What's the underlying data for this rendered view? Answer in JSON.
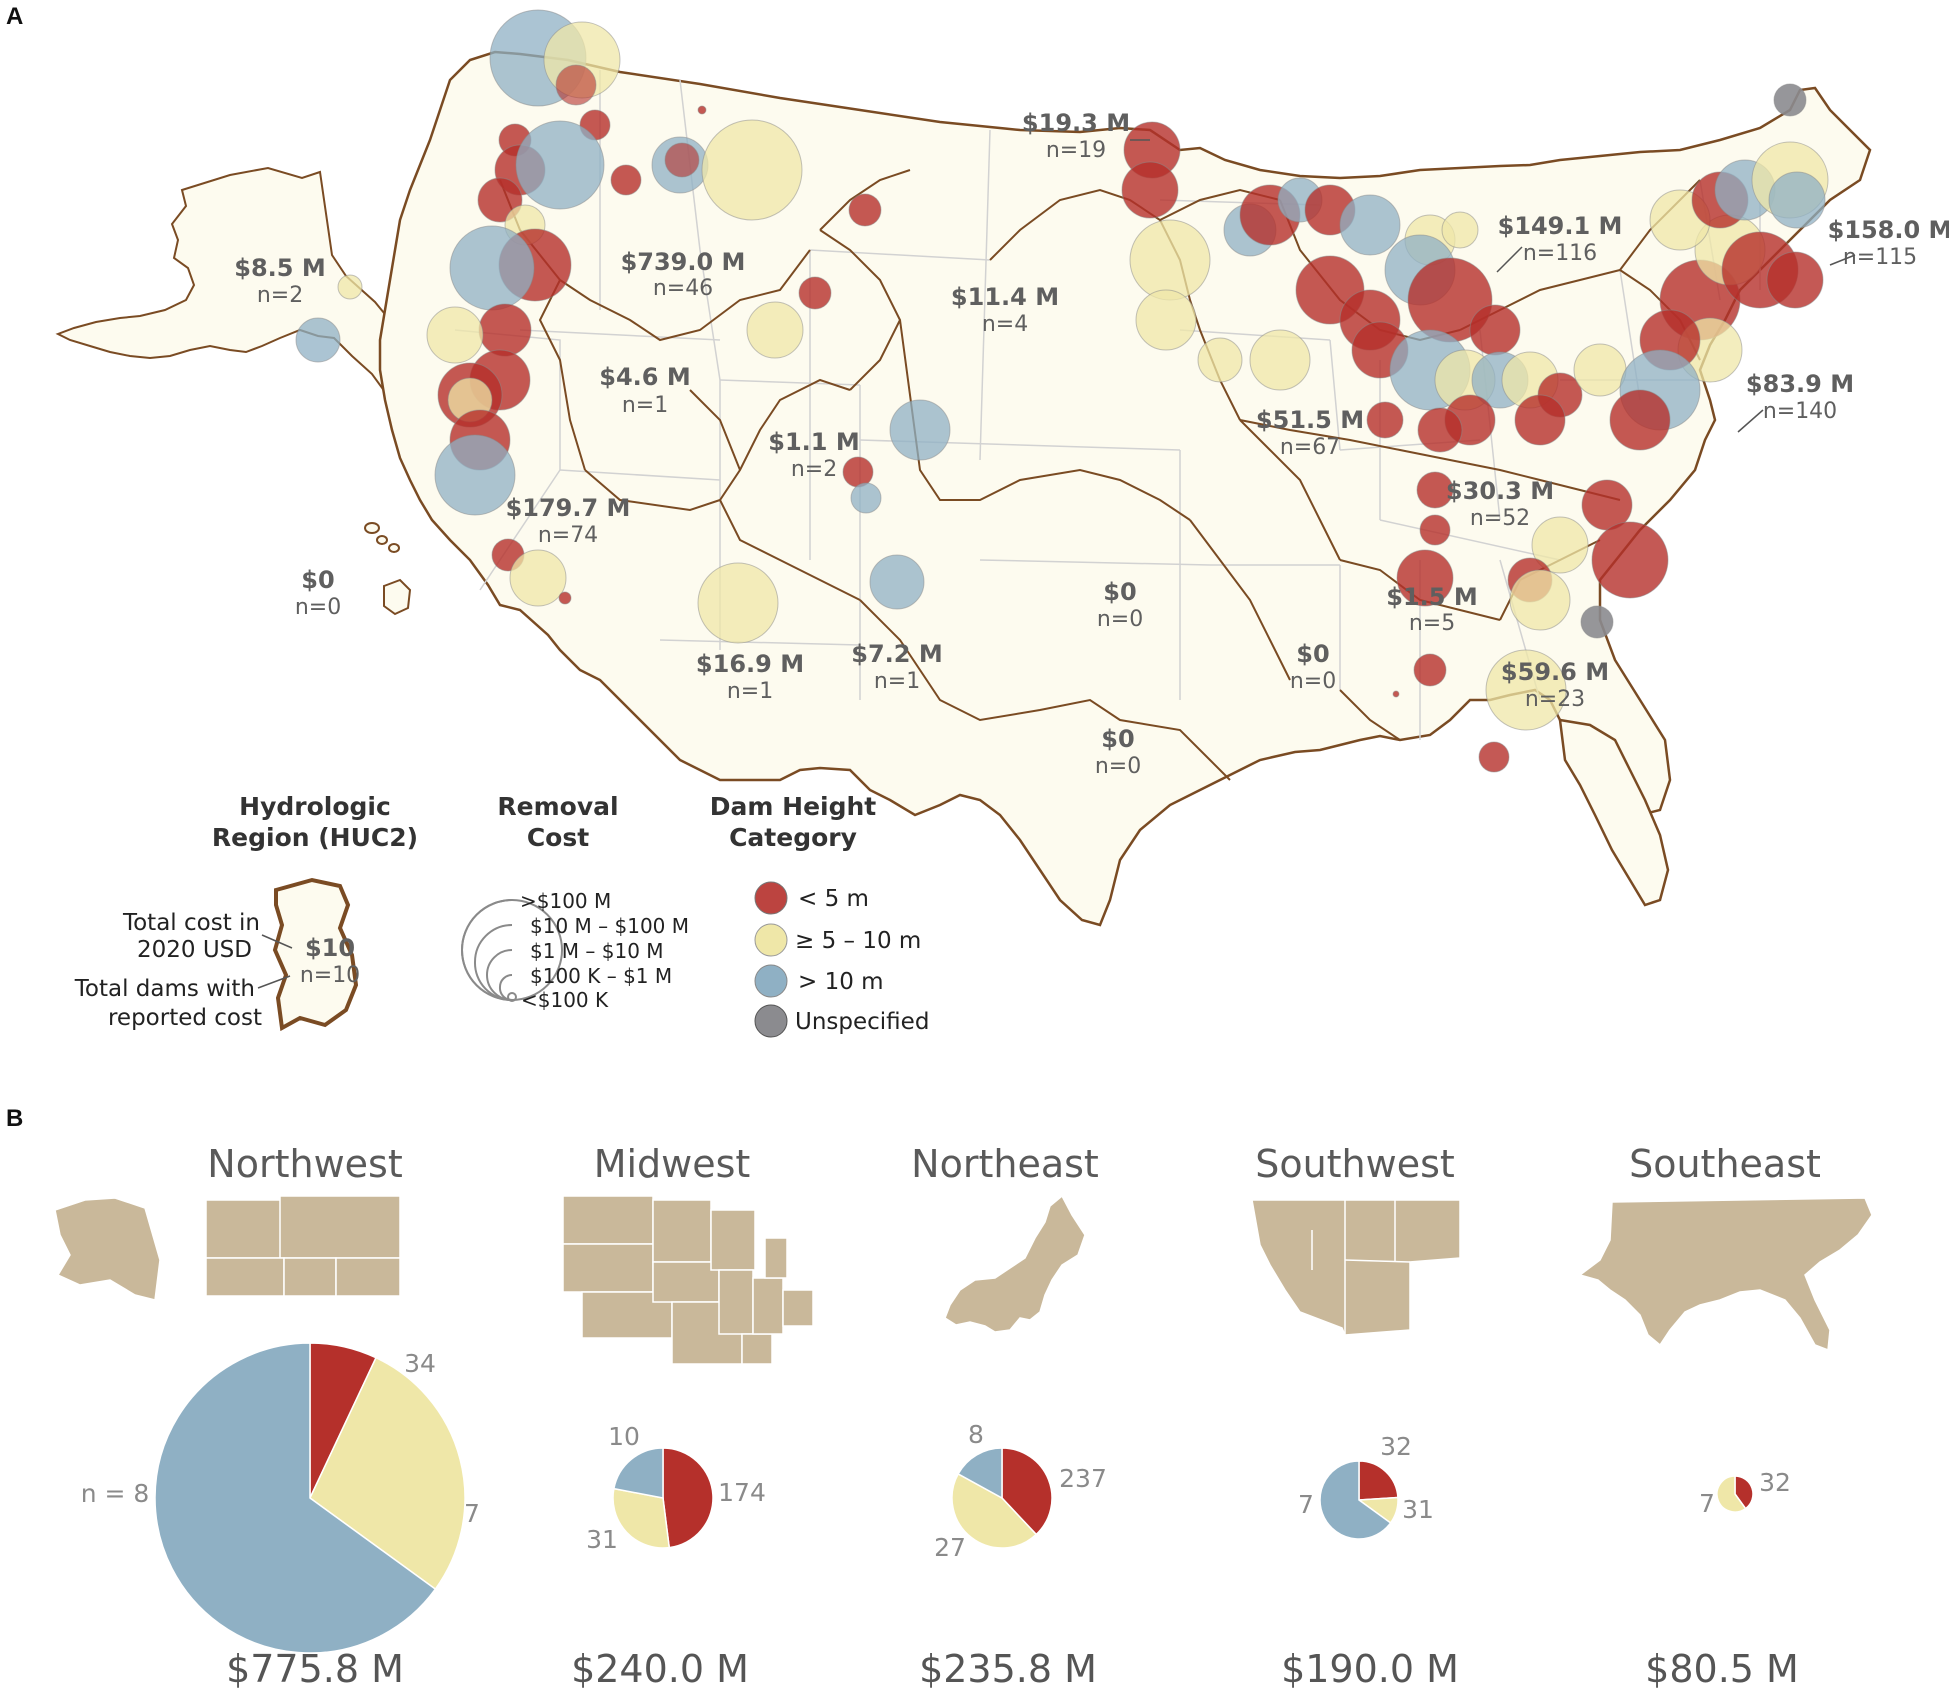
{
  "panel_labels": {
    "a": "A",
    "b": "B"
  },
  "colors": {
    "under5": "#b5302b",
    "five_to_ten": "#efe7a8",
    "over10": "#8fb0c4",
    "unspecified": "#8b8b8f",
    "land": "#fdfbef",
    "huc_border": "#7a4b23",
    "state_line": "#cfcfcf",
    "region_fill": "#c9b89a"
  },
  "regions": [
    {
      "id": "alaska",
      "cost": "$8.5 M",
      "n": "n=2"
    },
    {
      "id": "hawaii",
      "cost": "$0",
      "n": "n=0"
    },
    {
      "id": "pacific-nw",
      "cost": "$739.0 M",
      "n": "n=46"
    },
    {
      "id": "california",
      "cost": "$179.7 M",
      "n": "n=74"
    },
    {
      "id": "great-basin",
      "cost": "$4.6 M",
      "n": "n=1"
    },
    {
      "id": "upper-colorado",
      "cost": "$1.1 M",
      "n": "n=2"
    },
    {
      "id": "lower-colorado",
      "cost": "$16.9 M",
      "n": "n=1"
    },
    {
      "id": "rio-grande",
      "cost": "$7.2 M",
      "n": "n=1"
    },
    {
      "id": "missouri",
      "cost": "$11.4 M",
      "n": "n=4"
    },
    {
      "id": "souris-red-rainy",
      "cost": "$19.3 M",
      "n": "n=19"
    },
    {
      "id": "upper-mississippi",
      "cost": "$51.5 M",
      "n": "n=67"
    },
    {
      "id": "great-lakes",
      "cost": "$149.1 M",
      "n": "n=116"
    },
    {
      "id": "new-england",
      "cost": "$158.0 M",
      "n": "n=115"
    },
    {
      "id": "mid-atlantic",
      "cost": "$83.9 M",
      "n": "n=140"
    },
    {
      "id": "ohio",
      "cost": "$30.3 M",
      "n": "n=52"
    },
    {
      "id": "tennessee",
      "cost": "$1.5 M",
      "n": "n=5"
    },
    {
      "id": "south-atlantic-gulf",
      "cost": "$59.6 M",
      "n": "n=23"
    },
    {
      "id": "arkansas-white-red",
      "cost": "$0",
      "n": "n=0"
    },
    {
      "id": "lower-mississippi",
      "cost": "$0",
      "n": "n=0"
    },
    {
      "id": "texas-gulf",
      "cost": "$0",
      "n": "n=0"
    }
  ],
  "legend": {
    "huc": {
      "title_line1": "Hydrologic",
      "title_line2": "Region (HUC2)",
      "cost_label_line1": "Total cost in",
      "cost_label_line2": "2020 USD",
      "count_label_line1": "Total dams with",
      "count_label_line2": "reported cost",
      "example_cost": "$10",
      "example_n": "n=10"
    },
    "removal_cost": {
      "title_line1": "Removal",
      "title_line2": "Cost",
      "bins": [
        ">$100 M",
        "$10 M – $100 M",
        "$1 M – $10 M",
        "$100 K – $1 M",
        "<$100 K"
      ]
    },
    "height": {
      "title_line1": "Dam Height",
      "title_line2": "Category",
      "items": [
        {
          "label": "< 5 m",
          "color_key": "under5"
        },
        {
          "label": "≥ 5 – 10  m",
          "color_key": "five_to_ten"
        },
        {
          "label": "> 10 m",
          "color_key": "over10"
        },
        {
          "label": "Unspecified",
          "color_key": "unspecified"
        }
      ]
    }
  },
  "chart_data": [
    {
      "type": "pie",
      "title": "Northwest",
      "total": "$775.8 M",
      "slices": [
        {
          "category": "< 5 m",
          "count": 34,
          "share": 0.07
        },
        {
          "category": "≥ 5 – 10 m",
          "count": 7,
          "share": 0.28
        },
        {
          "category": "> 10 m",
          "count": 8,
          "share": 0.65
        }
      ],
      "labels": {
        "under5": "34",
        "five_to_ten": "7",
        "over10": "n = 8"
      }
    },
    {
      "type": "pie",
      "title": "Midwest",
      "total": "$240.0 M",
      "slices": [
        {
          "category": "< 5 m",
          "count": 174,
          "share": 0.48
        },
        {
          "category": "≥ 5 – 10 m",
          "count": 31,
          "share": 0.3
        },
        {
          "category": "> 10 m",
          "count": 10,
          "share": 0.22
        }
      ],
      "labels": {
        "under5": "174",
        "five_to_ten": "31",
        "over10": "10"
      }
    },
    {
      "type": "pie",
      "title": "Northeast",
      "total": "$235.8 M",
      "slices": [
        {
          "category": "< 5 m",
          "count": 237,
          "share": 0.38
        },
        {
          "category": "≥ 5 – 10 m",
          "count": 27,
          "share": 0.45
        },
        {
          "category": "> 10 m",
          "count": 8,
          "share": 0.17
        }
      ],
      "labels": {
        "under5": "237",
        "five_to_ten": "27",
        "over10": "8"
      }
    },
    {
      "type": "pie",
      "title": "Southwest",
      "total": "$190.0 M",
      "slices": [
        {
          "category": "< 5 m",
          "count": 32,
          "share": 0.24
        },
        {
          "category": "≥ 5 – 10 m",
          "count": 31,
          "share": 0.11
        },
        {
          "category": "> 10 m",
          "count": 7,
          "share": 0.65
        }
      ],
      "labels": {
        "under5": "32",
        "five_to_ten": "31",
        "over10": "7"
      }
    },
    {
      "type": "pie",
      "title": "Southeast",
      "total": "$80.5 M",
      "slices": [
        {
          "category": "< 5 m",
          "count": 32,
          "share": 0.4
        },
        {
          "category": "≥ 5 – 10 m",
          "count": 7,
          "share": 0.6
        }
      ],
      "labels": {
        "under5": "32",
        "five_to_ten": "7"
      }
    }
  ]
}
